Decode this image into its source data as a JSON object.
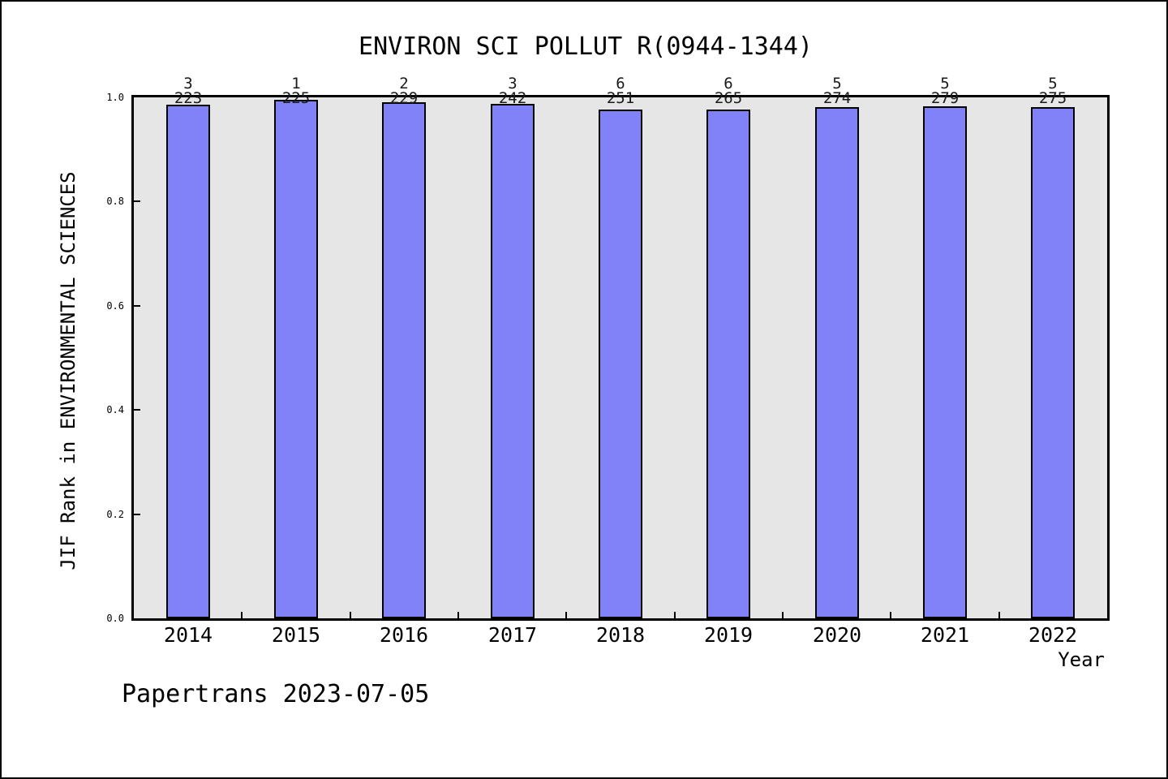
{
  "chart_data": {
    "type": "bar",
    "title": "ENVIRON SCI POLLUT R(0944-1344)",
    "xlabel": "Year",
    "ylabel": "JIF Rank in ENVIRONMENTAL SCIENCES",
    "footer": "Papertrans 2023-07-05",
    "categories": [
      "2014",
      "2015",
      "2016",
      "2017",
      "2018",
      "2019",
      "2020",
      "2021",
      "2022"
    ],
    "values": [
      0.9865,
      0.9956,
      0.9913,
      0.9876,
      0.9761,
      0.9774,
      0.9818,
      0.9821,
      0.9818
    ],
    "bar_labels": [
      {
        "numerator": "3",
        "denominator": "223"
      },
      {
        "numerator": "1",
        "denominator": "225"
      },
      {
        "numerator": "2",
        "denominator": "229"
      },
      {
        "numerator": "3",
        "denominator": "242"
      },
      {
        "numerator": "6",
        "denominator": "251"
      },
      {
        "numerator": "6",
        "denominator": "265"
      },
      {
        "numerator": "5",
        "denominator": "274"
      },
      {
        "numerator": "5",
        "denominator": "279"
      },
      {
        "numerator": "5",
        "denominator": "275"
      }
    ],
    "ylim": [
      0.0,
      1.0
    ],
    "yticks": [
      {
        "label": "0.0",
        "value": 0.0
      },
      {
        "label": "0.2",
        "value": 0.2
      },
      {
        "label": "0.4",
        "value": 0.4
      },
      {
        "label": "0.6",
        "value": 0.6
      },
      {
        "label": "0.8",
        "value": 0.8
      },
      {
        "label": "1.0",
        "value": 1.0
      }
    ],
    "grid": false,
    "legend": "none",
    "bar_color": "#8181f8",
    "bar_border_color": "#000000",
    "plot_background": "#e6e6e6",
    "figure_background": "#ffffff"
  }
}
